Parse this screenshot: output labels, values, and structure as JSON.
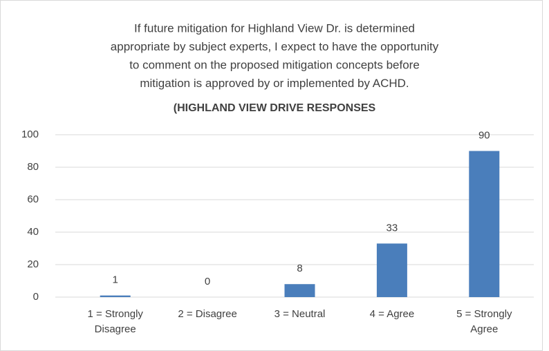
{
  "chart_data": {
    "type": "bar",
    "title": [
      "If future mitigation for Highland View Dr. is determined",
      "appropriate by subject experts, I expect to have the opportunity",
      "to comment on the proposed mitigation concepts before",
      "mitigation is approved by or implemented by ACHD."
    ],
    "subtitle": "(HIGHLAND VIEW DRIVE RESPONSES",
    "categories": [
      "1 = Strongly Disagree",
      "2 = Disagree",
      "3 = Neutral",
      "4 = Agree",
      "5 = Strongly Agree"
    ],
    "values": [
      1,
      0,
      8,
      33,
      90
    ],
    "color": "#4a7ebb",
    "ylim": [
      0,
      100
    ],
    "yticks": [
      0,
      20,
      40,
      60,
      80,
      100
    ],
    "grid": true
  }
}
